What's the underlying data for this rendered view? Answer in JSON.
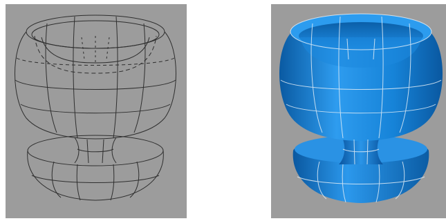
{
  "colors": {
    "viewport_bg": "#9c9c9c",
    "wire_line": "#2e2e2e",
    "surface_light": "#3aa4f0",
    "surface_mid": "#1580d6",
    "surface_dark": "#0b5fa8",
    "iso_line": "#e2edf6"
  },
  "views": [
    {
      "id": "wireframe",
      "style": "wireframe"
    },
    {
      "id": "shaded",
      "style": "shaded-with-isolines"
    }
  ]
}
